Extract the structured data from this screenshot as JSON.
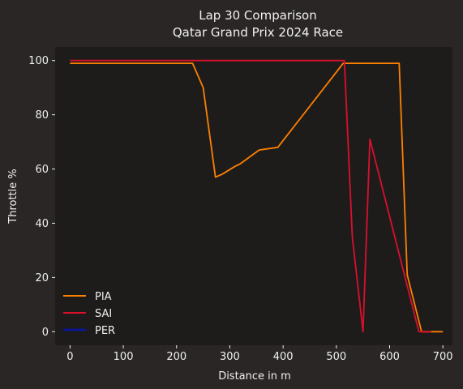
{
  "chart_data": {
    "type": "line",
    "title": "Lap 30 Comparison",
    "subtitle": "Qatar Grand Prix 2024 Race",
    "xlabel": "Distance in m",
    "ylabel": "Throttle %",
    "xlim": [
      -28,
      718
    ],
    "ylim": [
      -5,
      105
    ],
    "x_ticks": [
      0,
      100,
      200,
      300,
      400,
      500,
      600,
      700
    ],
    "y_ticks": [
      0,
      20,
      40,
      60,
      80,
      100
    ],
    "grid": false,
    "legend_position": "bottom-left",
    "series": [
      {
        "name": "PIA",
        "color": "#ff8000",
        "x": [
          0,
          230,
          250,
          273,
          285,
          310,
          320,
          355,
          390,
          513,
          618,
          633,
          660,
          700
        ],
        "y": [
          99,
          99,
          90,
          57,
          58,
          61,
          62,
          67,
          68,
          99,
          99,
          21,
          0,
          0
        ]
      },
      {
        "name": "SAI",
        "color": "#dc0f2d",
        "x": [
          0,
          515,
          530,
          550,
          563,
          655,
          678
        ],
        "y": [
          100,
          100,
          35,
          0,
          71,
          0,
          0
        ]
      },
      {
        "name": "PER",
        "color": "#0b1690",
        "x": [],
        "y": []
      }
    ]
  }
}
